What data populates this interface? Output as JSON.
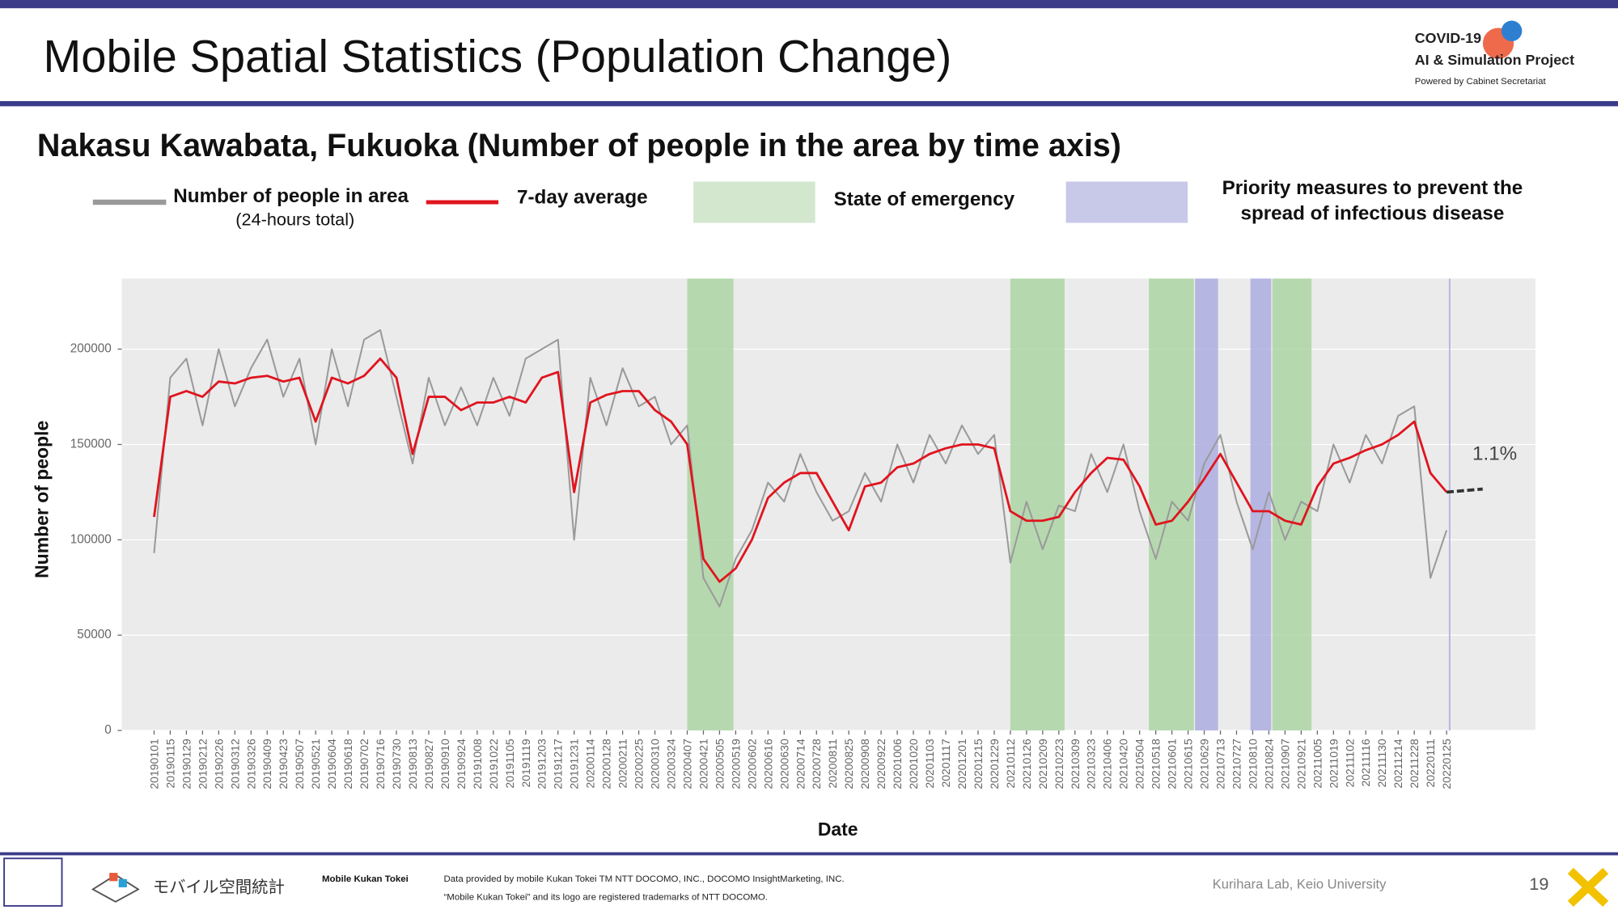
{
  "header": {
    "title": "Mobile Spatial Statistics (Population Change)",
    "logo_line1": "COVID-19",
    "logo_line2": "AI & Simulation Project",
    "logo_line3": "Powered by Cabinet Secretariat"
  },
  "chart_data": {
    "type": "line",
    "title": "Nakasu Kawabata, Fukuoka (Number of people in the area by time axis)",
    "x_label": "Date",
    "y_label": "Number of people",
    "x": [
      "20190101",
      "20190115",
      "20190129",
      "20190212",
      "20190226",
      "20190312",
      "20190326",
      "20190409",
      "20190423",
      "20190507",
      "20190521",
      "20190604",
      "20190618",
      "20190702",
      "20190716",
      "20190730",
      "20190813",
      "20190827",
      "20190910",
      "20190924",
      "20191008",
      "20191022",
      "20191105",
      "20191119",
      "20191203",
      "20191217",
      "20191231",
      "20200114",
      "20200128",
      "20200211",
      "20200225",
      "20200310",
      "20200324",
      "20200407",
      "20200421",
      "20200505",
      "20200519",
      "20200602",
      "20200616",
      "20200630",
      "20200714",
      "20200728",
      "20200811",
      "20200825",
      "20200908",
      "20200922",
      "20201006",
      "20201020",
      "20201103",
      "20201117",
      "20201201",
      "20201215",
      "20201229",
      "20210112",
      "20210126",
      "20210209",
      "20210223",
      "20210309",
      "20210323",
      "20210406",
      "20210420",
      "20210504",
      "20210518",
      "20210601",
      "20210615",
      "20210629",
      "20210713",
      "20210727",
      "20210810",
      "20210824",
      "20210907",
      "20210921",
      "20211005",
      "20211019",
      "20211102",
      "20211116",
      "20211130",
      "20211214",
      "20211228",
      "20220111",
      "20220125"
    ],
    "xlim": [
      "20181204",
      "20220412"
    ],
    "ylim": [
      0,
      237000
    ],
    "yticks": [
      0,
      50000,
      100000,
      150000,
      200000
    ],
    "grid": true,
    "series": [
      {
        "name": "Number of people in area",
        "note": "(24-hours total)",
        "color": "#9a9a9a",
        "values": [
          93000,
          185000,
          195000,
          160000,
          200000,
          170000,
          190000,
          205000,
          175000,
          195000,
          150000,
          200000,
          170000,
          205000,
          210000,
          175000,
          140000,
          185000,
          160000,
          180000,
          160000,
          185000,
          165000,
          195000,
          200000,
          205000,
          100000,
          185000,
          160000,
          190000,
          170000,
          175000,
          150000,
          160000,
          80000,
          65000,
          90000,
          105000,
          130000,
          120000,
          145000,
          125000,
          110000,
          115000,
          135000,
          120000,
          150000,
          130000,
          155000,
          140000,
          160000,
          145000,
          155000,
          88000,
          120000,
          95000,
          118000,
          115000,
          145000,
          125000,
          150000,
          115000,
          90000,
          120000,
          110000,
          140000,
          155000,
          120000,
          95000,
          125000,
          100000,
          120000,
          115000,
          150000,
          130000,
          155000,
          140000,
          165000,
          170000,
          80000,
          105000
        ]
      },
      {
        "name": "7-day average",
        "color": "#e0141e",
        "values": [
          112000,
          175000,
          178000,
          175000,
          183000,
          182000,
          185000,
          186000,
          183000,
          185000,
          162000,
          185000,
          182000,
          186000,
          195000,
          185000,
          145000,
          175000,
          175000,
          168000,
          172000,
          172000,
          175000,
          172000,
          185000,
          188000,
          125000,
          172000,
          176000,
          178000,
          178000,
          168000,
          162000,
          150000,
          90000,
          78000,
          85000,
          100000,
          122000,
          130000,
          135000,
          135000,
          120000,
          105000,
          128000,
          130000,
          138000,
          140000,
          145000,
          148000,
          150000,
          150000,
          148000,
          115000,
          110000,
          110000,
          112000,
          125000,
          135000,
          143000,
          142000,
          128000,
          108000,
          110000,
          120000,
          132000,
          145000,
          130000,
          115000,
          115000,
          110000,
          108000,
          128000,
          140000,
          143000,
          147000,
          150000,
          155000,
          162000,
          135000,
          125000
        ]
      }
    ],
    "shaded_regions": [
      {
        "name": "State of emergency",
        "color": "#a9d3a0",
        "ranges": [
          [
            "20200407",
            "20200517"
          ],
          [
            "20210112",
            "20210228"
          ],
          [
            "20210512",
            "20210620"
          ],
          [
            "20210827",
            "20210930"
          ]
        ]
      },
      {
        "name": "Priority measures to prevent the spread of infectious disease",
        "color": "#a9a9e0",
        "ranges": [
          [
            "20210621",
            "20210711"
          ],
          [
            "20210808",
            "20210826"
          ],
          [
            "20220127",
            "20220128"
          ]
        ]
      }
    ],
    "annotation": "1.1%"
  },
  "footer": {
    "brand": "モバイル空間統計",
    "brand_label": "Mobile Kukan Tokei",
    "credit1": "Data provided by mobile Kukan Tokei TM NTT DOCOMO, INC., DOCOMO InsightMarketing, INC.",
    "credit2": "“Mobile Kukan Tokei” and its logo are registered trademarks of NTT DOCOMO.",
    "lab": "Kurihara Lab, Keio University",
    "page": "19"
  }
}
